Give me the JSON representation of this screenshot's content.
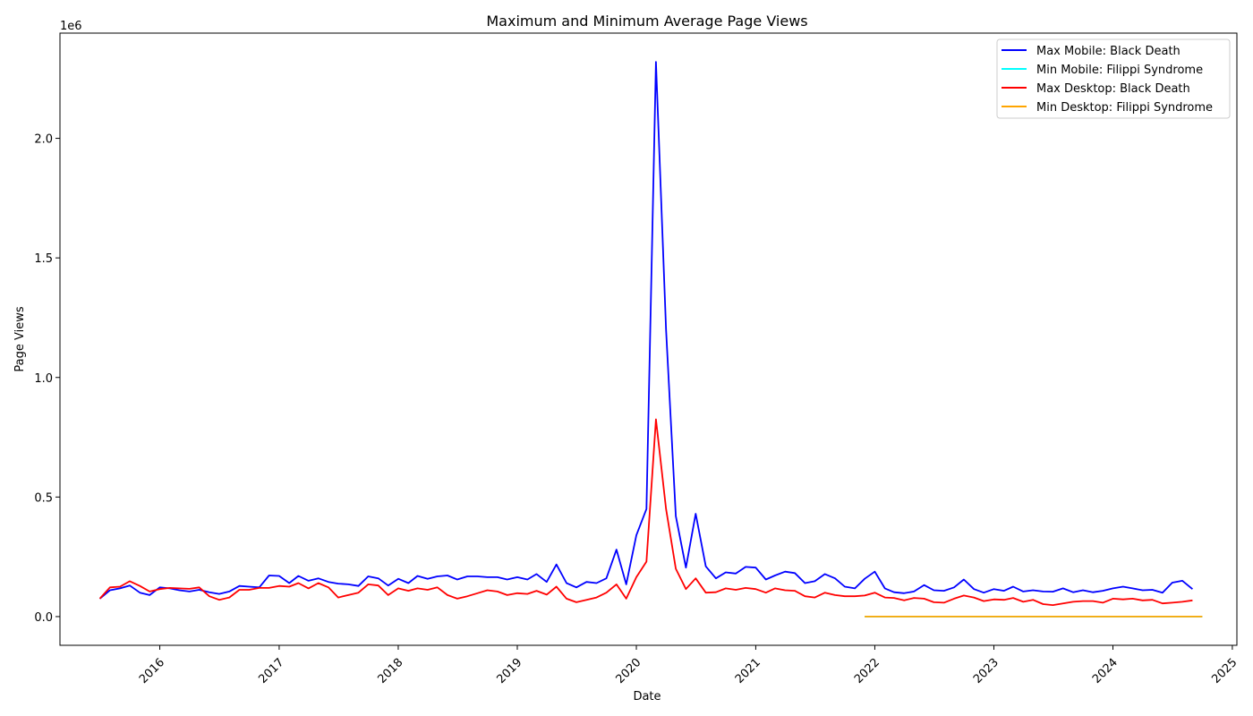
{
  "chart_data": {
    "type": "line",
    "title": "Maximum and Minimum Average Page Views",
    "xlabel": "Date",
    "ylabel": "Page Views",
    "y_offset_label": "1e6",
    "xlim": [
      "2015-03-01",
      "2025-01-15"
    ],
    "ylim": [
      -120000,
      2440000
    ],
    "x_ticks": [
      {
        "date": "2016-01-01",
        "label": "2016"
      },
      {
        "date": "2017-01-01",
        "label": "2017"
      },
      {
        "date": "2018-01-01",
        "label": "2018"
      },
      {
        "date": "2019-01-01",
        "label": "2019"
      },
      {
        "date": "2020-01-01",
        "label": "2020"
      },
      {
        "date": "2021-01-01",
        "label": "2021"
      },
      {
        "date": "2022-01-01",
        "label": "2022"
      },
      {
        "date": "2023-01-01",
        "label": "2023"
      },
      {
        "date": "2024-01-01",
        "label": "2024"
      },
      {
        "date": "2025-01-01",
        "label": "2025"
      }
    ],
    "y_ticks": [
      {
        "value": 0,
        "label": "0.0"
      },
      {
        "value": 500000,
        "label": "0.5"
      },
      {
        "value": 1000000,
        "label": "1.0"
      },
      {
        "value": 1500000,
        "label": "1.5"
      },
      {
        "value": 2000000,
        "label": "2.0"
      }
    ],
    "grid": false,
    "legend_position": "top-right",
    "x_start": "2015-07",
    "series": [
      {
        "name": "Max Mobile: Black Death",
        "color": "#0000ff",
        "start": "2015-07",
        "values": [
          75000,
          110000,
          118000,
          130000,
          100000,
          90000,
          122000,
          118000,
          110000,
          105000,
          112000,
          102000,
          95000,
          105000,
          128000,
          125000,
          122000,
          172000,
          170000,
          140000,
          170000,
          150000,
          160000,
          145000,
          138000,
          135000,
          128000,
          168000,
          160000,
          130000,
          158000,
          140000,
          170000,
          158000,
          168000,
          172000,
          155000,
          168000,
          168000,
          165000,
          165000,
          155000,
          165000,
          155000,
          178000,
          145000,
          218000,
          140000,
          122000,
          145000,
          140000,
          160000,
          280000,
          135000,
          340000,
          450000,
          2320000,
          1200000,
          420000,
          205000,
          430000,
          210000,
          160000,
          185000,
          180000,
          208000,
          205000,
          155000,
          172000,
          188000,
          182000,
          140000,
          148000,
          178000,
          160000,
          125000,
          118000,
          158000,
          188000,
          118000,
          102000,
          98000,
          105000,
          132000,
          110000,
          108000,
          122000,
          155000,
          115000,
          100000,
          115000,
          108000,
          125000,
          105000,
          110000,
          105000,
          104000,
          118000,
          102000,
          110000,
          102000,
          108000,
          118000,
          125000,
          118000,
          110000,
          112000,
          100000,
          142000,
          150000,
          115000
        ]
      },
      {
        "name": "Min Mobile: Filippi Syndrome",
        "color": "#00ffff",
        "start": "2021-12",
        "values": [
          0,
          0,
          0,
          0,
          0,
          0,
          0,
          0,
          0,
          0,
          0,
          0,
          0,
          0,
          0,
          0,
          0,
          0,
          0,
          0,
          0,
          0,
          0,
          0,
          0,
          0,
          0,
          0,
          0,
          0,
          0,
          0,
          0,
          0,
          0
        ]
      },
      {
        "name": "Max Desktop: Black Death",
        "color": "#ff0000",
        "start": "2015-07",
        "values": [
          75000,
          122000,
          125000,
          148000,
          128000,
          105000,
          115000,
          120000,
          118000,
          116000,
          122000,
          85000,
          70000,
          80000,
          112000,
          112000,
          120000,
          120000,
          128000,
          125000,
          140000,
          118000,
          140000,
          122000,
          80000,
          90000,
          100000,
          135000,
          130000,
          90000,
          118000,
          108000,
          118000,
          112000,
          122000,
          90000,
          75000,
          85000,
          98000,
          110000,
          105000,
          90000,
          98000,
          95000,
          108000,
          92000,
          125000,
          75000,
          60000,
          70000,
          80000,
          100000,
          135000,
          75000,
          165000,
          230000,
          825000,
          450000,
          200000,
          115000,
          160000,
          100000,
          102000,
          118000,
          112000,
          120000,
          115000,
          100000,
          118000,
          110000,
          108000,
          85000,
          80000,
          100000,
          90000,
          85000,
          85000,
          88000,
          100000,
          80000,
          78000,
          68000,
          78000,
          75000,
          60000,
          58000,
          75000,
          88000,
          80000,
          65000,
          72000,
          70000,
          78000,
          62000,
          70000,
          52000,
          48000,
          55000,
          62000,
          65000,
          65000,
          58000,
          75000,
          72000,
          75000,
          68000,
          70000,
          55000,
          58000,
          62000,
          68000
        ]
      },
      {
        "name": "Min Desktop: Filippi Syndrome",
        "color": "#ffa500",
        "start": "2021-12",
        "values": [
          0,
          0,
          0,
          0,
          0,
          0,
          0,
          0,
          0,
          0,
          0,
          0,
          0,
          0,
          0,
          0,
          0,
          0,
          0,
          0,
          0,
          0,
          0,
          0,
          0,
          0,
          0,
          0,
          0,
          0,
          0,
          0,
          0,
          0,
          0
        ]
      }
    ]
  }
}
